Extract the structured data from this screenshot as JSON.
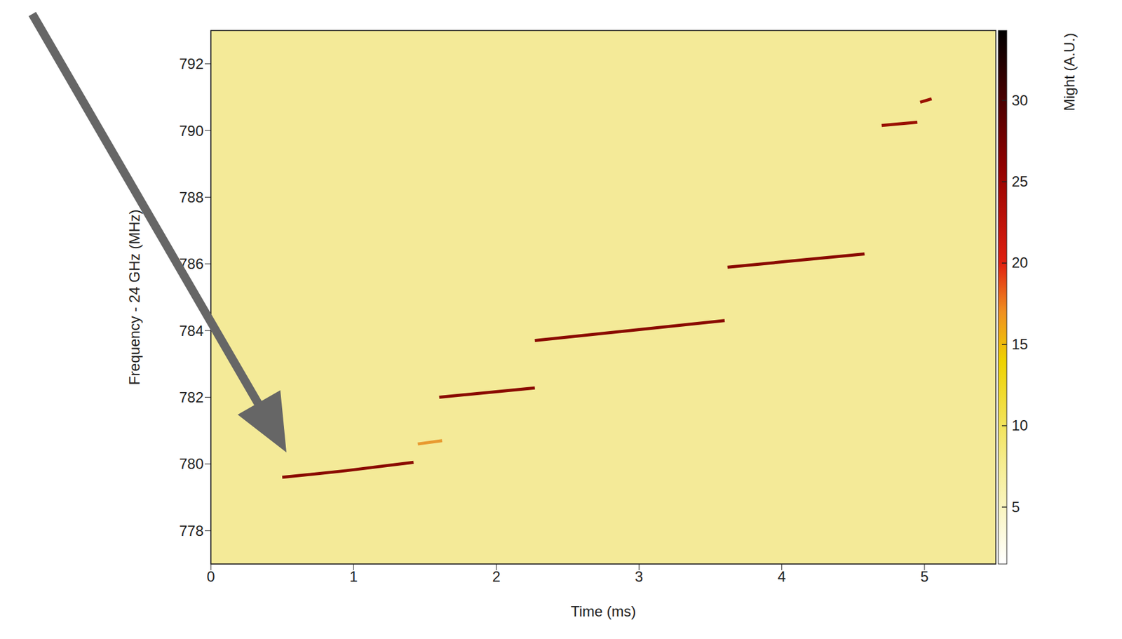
{
  "chart_data": {
    "type": "spectrogram",
    "xlabel": "Time (ms)",
    "ylabel": "Frequency - 24 GHz (MHz)",
    "xlim": [
      0,
      5.5
    ],
    "xticks": [
      0,
      1,
      2,
      3,
      4,
      5
    ],
    "ylim": [
      777,
      793
    ],
    "yticks": [
      778,
      780,
      782,
      784,
      786,
      788,
      790,
      792
    ],
    "grid": false,
    "tracks": [
      {
        "x": [
          0.5,
          0.95,
          1.42
        ],
        "y": [
          779.6,
          779.8,
          780.05
        ],
        "color": "#8a0a00"
      },
      {
        "x": [
          1.45,
          1.62
        ],
        "y": [
          780.6,
          780.7
        ],
        "color": "#e89a30"
      },
      {
        "x": [
          1.6,
          2.27
        ],
        "y": [
          782.0,
          782.28
        ],
        "color": "#8a0a00"
      },
      {
        "x": [
          2.27,
          3.6
        ],
        "y": [
          783.7,
          784.3
        ],
        "color": "#8a0a00"
      },
      {
        "x": [
          3.62,
          4.58
        ],
        "y": [
          785.9,
          786.3
        ],
        "color": "#8a0a00"
      },
      {
        "x": [
          4.7,
          4.95
        ],
        "y": [
          790.15,
          790.25
        ],
        "color": "#9a1000"
      },
      {
        "x": [
          4.97,
          5.05
        ],
        "y": [
          790.85,
          790.95
        ],
        "color": "#9a1000"
      }
    ],
    "colorbar": {
      "label": "Might (A.U.)",
      "range": [
        1.5,
        34.3
      ],
      "ticks": [
        5,
        10,
        15,
        20,
        25,
        30
      ]
    }
  }
}
